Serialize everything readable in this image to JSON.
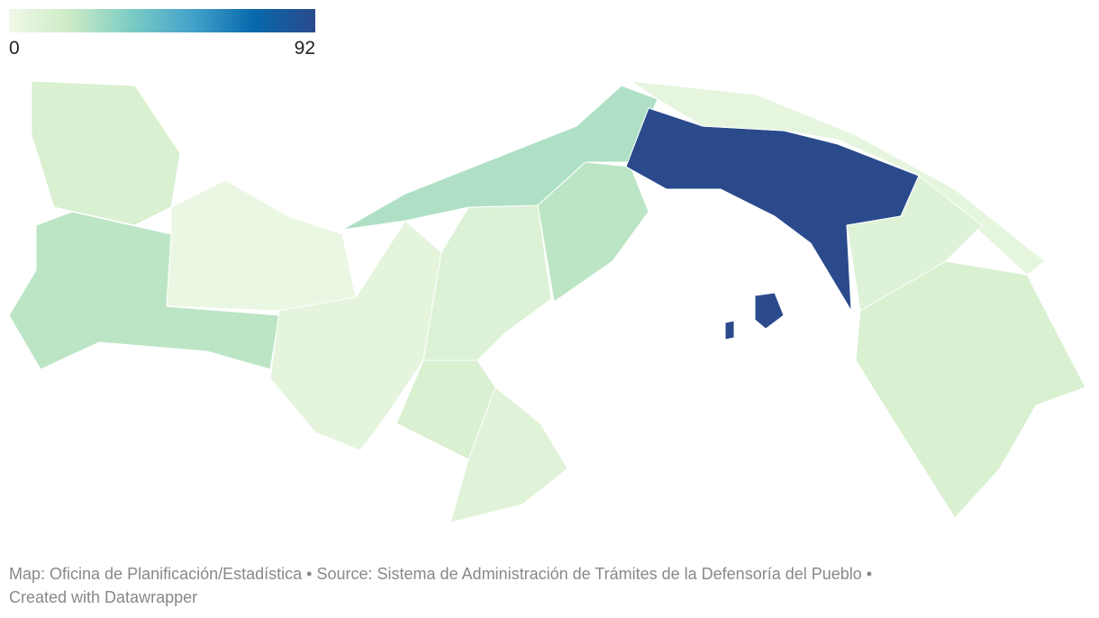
{
  "legend": {
    "min": 0,
    "max": 92,
    "colors": [
      "#f0f9e8",
      "#ccebc5",
      "#7bccc4",
      "#43a2ca",
      "#0868ac",
      "#2a4a8c"
    ]
  },
  "regions": [
    12,
    22,
    3,
    6,
    10,
    12,
    8,
    25,
    22,
    92,
    5,
    9,
    12,
    92,
    92
  ],
  "footer": {
    "line1": "Map: Oficina de Planificación/Estadística • Source: Sistema de Administración de Trámites de la Defensoría del Pueblo •",
    "line2": "Created with Datawrapper"
  }
}
